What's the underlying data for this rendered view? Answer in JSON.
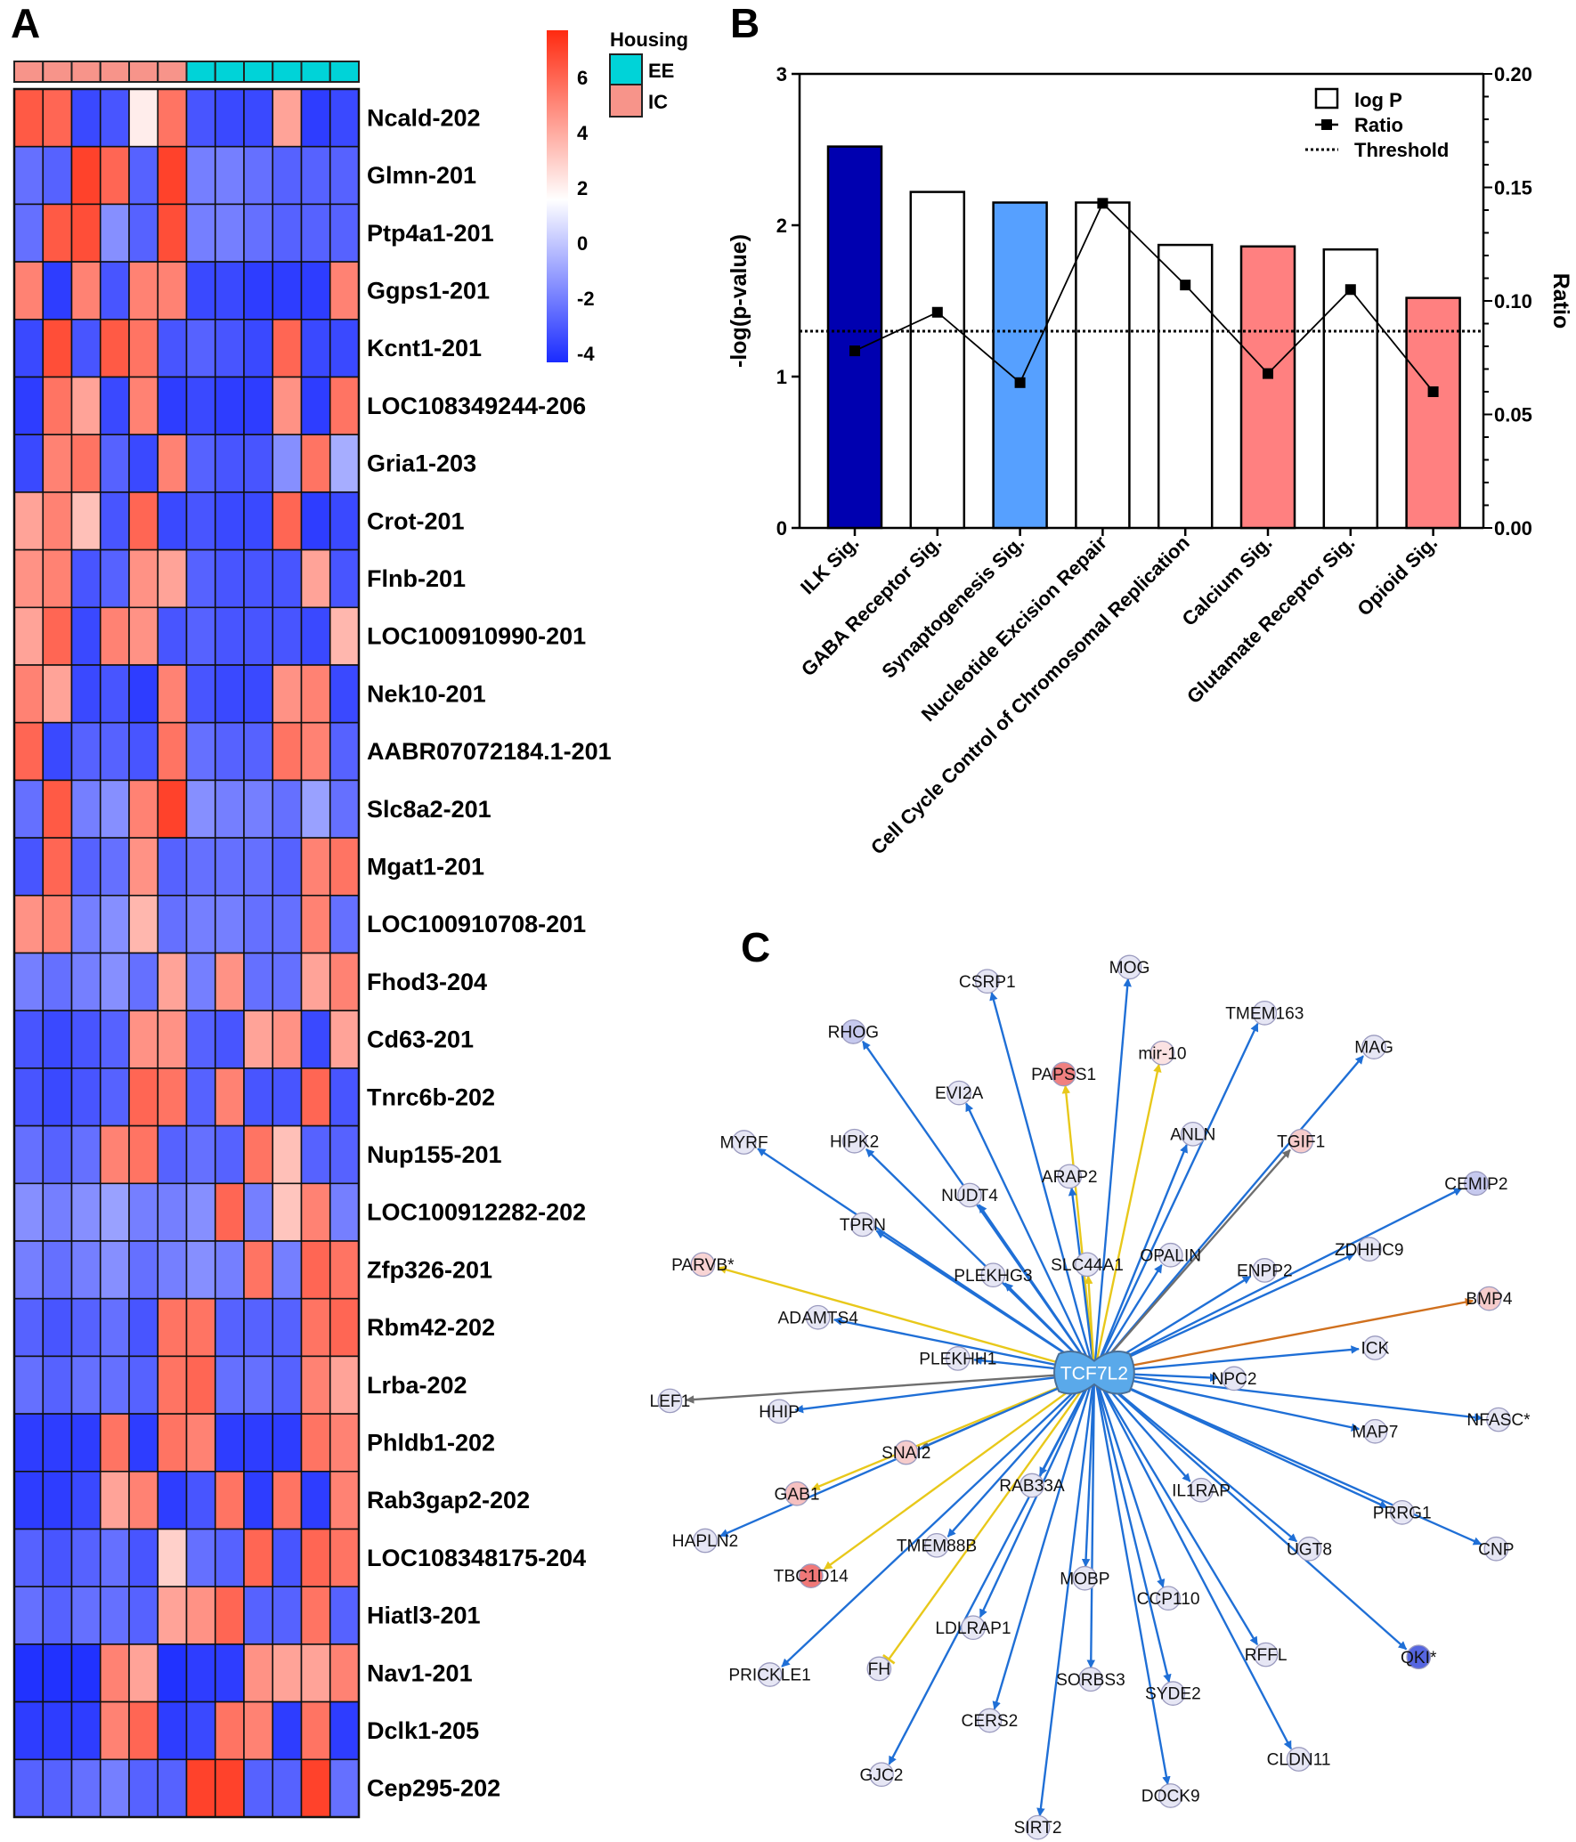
{
  "panels": {
    "a": "A",
    "b": "B",
    "c": "C"
  },
  "chart_data": [
    {
      "type": "heatmap",
      "panel": "A",
      "legend": {
        "title": "Housing",
        "groups": [
          {
            "label": "EE",
            "color": "#00d3d8"
          },
          {
            "label": "IC",
            "color": "#f7948a"
          }
        ]
      },
      "column_groups": [
        "IC",
        "IC",
        "IC",
        "IC",
        "IC",
        "IC",
        "EE",
        "EE",
        "EE",
        "EE",
        "EE",
        "EE"
      ],
      "colorbar": {
        "ticks": [
          "6",
          "4",
          "2",
          "0",
          "-2",
          "-4"
        ],
        "range": [
          -4.3,
          7.6
        ],
        "low": "#1a2bff",
        "mid": "#ffffff",
        "high": "#ff2a10"
      },
      "rows": [
        "Ncald-202",
        "Glmn-201",
        "Ptp4a1-201",
        "Ggps1-201",
        "Kcnt1-201",
        "LOC108349244-206",
        "Gria1-203",
        "Crot-201",
        "Flnb-201",
        "LOC100910990-201",
        "Nek10-201",
        "AABR07072184.1-201",
        "Slc8a2-201",
        "Mgat1-201",
        "LOC100910708-201",
        "Fhod3-204",
        "Cd63-201",
        "Tnrc6b-202",
        "Nup155-201",
        "LOC100912282-202",
        "Zfp326-201",
        "Rbm42-202",
        "Lrba-202",
        "Phldb1-202",
        "Rab3gap2-202",
        "LOC108348175-204",
        "Hiatl3-201",
        "Nav1-201",
        "Dclk1-205",
        "Cep295-202"
      ],
      "values": [
        [
          5.5,
          5,
          -3,
          -2.5,
          1.6,
          4.5,
          -2.5,
          -3,
          -3,
          3,
          -3.5,
          -3
        ],
        [
          -1.5,
          -2,
          6.5,
          5,
          -2,
          6.5,
          -1,
          -1,
          -1.5,
          -2,
          -2,
          -2
        ],
        [
          -1.5,
          5.5,
          6,
          -0.5,
          -2,
          6,
          -1,
          -1,
          -1.5,
          -2,
          -2,
          -2
        ],
        [
          4,
          -3.5,
          4,
          -2.5,
          4,
          4,
          -3,
          -3,
          -3.5,
          -3.5,
          -3.5,
          4
        ],
        [
          -3,
          6,
          -2.5,
          5.5,
          4.5,
          -2.5,
          -2,
          -2.5,
          -3,
          5,
          -3,
          -3
        ],
        [
          -3.5,
          4.5,
          3,
          -3,
          4,
          -3.5,
          -3,
          -3.5,
          -3.5,
          3.5,
          -3.5,
          4.5
        ],
        [
          -3,
          4,
          4.5,
          -2,
          -3,
          4,
          -2,
          -2.5,
          -2.5,
          -0.5,
          4.5,
          0.3
        ],
        [
          3,
          4,
          2.3,
          -2.5,
          5,
          -3,
          -2.5,
          -3,
          -3,
          5,
          -3.5,
          -3
        ],
        [
          3.5,
          4,
          -2.5,
          -2,
          3.5,
          3,
          -2,
          -2.5,
          -2.5,
          -2.5,
          3,
          -2.5
        ],
        [
          3,
          5,
          -3,
          4,
          3.5,
          -2.5,
          -2,
          -2.5,
          -2.5,
          -2.5,
          -3,
          2.5
        ],
        [
          4,
          3,
          -3,
          -2.5,
          -3.5,
          4,
          -2.5,
          -3,
          -3,
          3.5,
          4,
          -3
        ],
        [
          5,
          -3,
          -2,
          -2,
          -2.5,
          4.5,
          -1.5,
          -2,
          -2,
          4.5,
          4,
          -2
        ],
        [
          -1.5,
          5.5,
          -1,
          -0.5,
          4,
          6.5,
          -0.5,
          -1,
          -1,
          -1.5,
          0,
          -1.5
        ],
        [
          -2.5,
          5,
          -2,
          -1.5,
          3.5,
          -2,
          -1.5,
          -1.5,
          -1.5,
          -2,
          4,
          4.5
        ],
        [
          3.5,
          4,
          -1,
          -0.5,
          2.5,
          -1.5,
          -1,
          -1,
          -1.5,
          -1.5,
          4,
          -1.5
        ],
        [
          -1,
          -1.5,
          -1,
          -0.5,
          -1.5,
          3,
          -1,
          3.5,
          -1.5,
          -1.5,
          3,
          4
        ],
        [
          -2.5,
          -3,
          -2.5,
          -2,
          3.5,
          3.5,
          -2,
          -2.5,
          3,
          3.5,
          -3,
          3
        ],
        [
          -2.5,
          -3,
          -2.5,
          -2,
          5,
          4.5,
          -2,
          4,
          -2.5,
          -2.5,
          5,
          -2.5
        ],
        [
          -1.5,
          -2,
          -1.5,
          4,
          4.5,
          -2,
          -1.5,
          -2,
          4.5,
          2.3,
          -2,
          -2
        ],
        [
          -0.5,
          -1,
          -0.5,
          0,
          -1,
          -1,
          -0.5,
          5,
          -1,
          2.2,
          4,
          -1
        ],
        [
          -1,
          -1.5,
          -1,
          -0.5,
          -1.5,
          -1,
          -0.5,
          -1,
          4.5,
          -1,
          5,
          4.5
        ],
        [
          -2,
          -2.5,
          -2,
          -1.5,
          -2.5,
          4.5,
          4.5,
          -2,
          -2,
          -2,
          4.5,
          5
        ],
        [
          -1.5,
          -2,
          -1.5,
          -1.5,
          -2,
          4.5,
          5,
          -1.5,
          -1.5,
          -2,
          4,
          3
        ],
        [
          -3.5,
          -3.5,
          -3.5,
          4.5,
          -3.5,
          4.5,
          4,
          -3.5,
          -3.5,
          -3.5,
          4.5,
          4
        ],
        [
          -3.5,
          -3.5,
          -3,
          3,
          4,
          -3.5,
          -2.5,
          4.5,
          -3.5,
          4.5,
          -3.5,
          4
        ],
        [
          -2,
          -2.5,
          -2,
          -1.5,
          -2.5,
          2,
          -1.5,
          -2,
          5,
          -2.5,
          5,
          4.5
        ],
        [
          -1.5,
          -2,
          -1.5,
          -1.5,
          -2,
          3,
          3.5,
          5,
          -2,
          -2,
          4.5,
          -2
        ],
        [
          -4,
          -4,
          -4,
          4,
          3,
          -4,
          -3.5,
          -3.5,
          3.5,
          3,
          3,
          4
        ],
        [
          -3.5,
          -3.5,
          -3.5,
          4,
          5,
          -3.5,
          -3,
          4.5,
          4,
          -3.5,
          4.5,
          -3.5
        ],
        [
          -2,
          -2,
          -1.5,
          -1,
          -2,
          -2,
          6.5,
          6.5,
          -2,
          -2,
          6.5,
          -1.5
        ]
      ]
    },
    {
      "type": "bar",
      "panel": "B",
      "categories": [
        "ILK Sig.",
        "GABA Receptor Sig.",
        "Synaptogenesis Sig.",
        "Nucleotide Excision Repair",
        "Cell Cycle Control of Chromosomal Replication",
        "Calcium Sig.",
        "Glutamate Receptor Sig.",
        "Opioid Sig."
      ],
      "series": [
        {
          "name": "log P",
          "type": "bar",
          "axis": "left",
          "values": [
            2.52,
            2.22,
            2.15,
            2.15,
            1.87,
            1.86,
            1.84,
            1.52
          ],
          "colors": [
            "#0000b0",
            "#ffffff",
            "#56a0ff",
            "#ffffff",
            "#ffffff",
            "#ff8080",
            "#ffffff",
            "#ff8080"
          ]
        },
        {
          "name": "Ratio",
          "type": "line",
          "axis": "right",
          "values": [
            0.078,
            0.095,
            0.064,
            0.143,
            0.107,
            0.068,
            0.105,
            0.06
          ]
        },
        {
          "name": "Threshold",
          "type": "hline",
          "axis": "left",
          "value": 1.3
        }
      ],
      "ylabel": "-log(p-value)",
      "y2label": "Ratio",
      "ylim": [
        0,
        3
      ],
      "y2lim": [
        0,
        0.2
      ],
      "yticks": [
        "0",
        "1",
        "2",
        "3"
      ],
      "y2ticks": [
        "0.00",
        "0.05",
        "0.10",
        "0.15",
        "0.20"
      ],
      "legend_position": "top-right"
    },
    {
      "type": "network",
      "panel": "C",
      "center": {
        "label": "TCF7L2",
        "color": "#5aa9ea"
      },
      "edge_colors": {
        "blue": "#1f6fd6",
        "yellow": "#e8c81a",
        "gray": "#6e6e6e",
        "orange": "#d0701e"
      },
      "nodes": [
        {
          "label": "CSRP1",
          "fill": "#e6e6f4",
          "edge": "blue"
        },
        {
          "label": "MOG",
          "fill": "#e6e6f4",
          "edge": "blue"
        },
        {
          "label": "TMEM163",
          "fill": "#e6e6f4",
          "edge": "blue"
        },
        {
          "label": "RHOG",
          "fill": "#c6c9ee",
          "edge": "blue"
        },
        {
          "label": "PAPSS1",
          "fill": "#f08080",
          "edge": "yellow"
        },
        {
          "label": "mir-10",
          "fill": "#fbe2e2",
          "edge": "yellow"
        },
        {
          "label": "MAG",
          "fill": "#e6e6f4",
          "edge": "blue"
        },
        {
          "label": "EVI2A",
          "fill": "#e6e6f4",
          "edge": "blue"
        },
        {
          "label": "MYRF",
          "fill": "#e6e6f4",
          "edge": "blue"
        },
        {
          "label": "HIPK2",
          "fill": "#e6e6f4",
          "edge": "blue"
        },
        {
          "label": "ANLN",
          "fill": "#e6e6f4",
          "edge": "blue"
        },
        {
          "label": "TGIF1",
          "fill": "#f6cccc",
          "edge": "gray"
        },
        {
          "label": "ARAP2",
          "fill": "#e6e6f4",
          "edge": "blue"
        },
        {
          "label": "CEMIP2",
          "fill": "#c6c9ee",
          "edge": "blue"
        },
        {
          "label": "NUDT4",
          "fill": "#e6e6f4",
          "edge": "blue"
        },
        {
          "label": "TPRN",
          "fill": "#e6e6f4",
          "edge": "blue"
        },
        {
          "label": "ZDHHC9",
          "fill": "#e6e6f4",
          "edge": "blue"
        },
        {
          "label": "OPALIN",
          "fill": "#e6e6f4",
          "edge": "blue"
        },
        {
          "label": "SLC44A1",
          "fill": "#e6e6f4",
          "edge": "yellow"
        },
        {
          "label": "PLEKHG3",
          "fill": "#e6e6f4",
          "edge": "blue"
        },
        {
          "label": "PARVB*",
          "fill": "#f8d4d4",
          "edge": "yellow"
        },
        {
          "label": "ENPP2",
          "fill": "#e6e6f4",
          "edge": "blue"
        },
        {
          "label": "BMP4",
          "fill": "#f6cccc",
          "edge": "orange"
        },
        {
          "label": "ADAMTS4",
          "fill": "#e6e6f4",
          "edge": "blue"
        },
        {
          "label": "ICK",
          "fill": "#e6e6f4",
          "edge": "blue"
        },
        {
          "label": "PLEKHH1",
          "fill": "#e6e6f4",
          "edge": "blue"
        },
        {
          "label": "NPC2",
          "fill": "#e6e6f4",
          "edge": "blue"
        },
        {
          "label": "LEF1",
          "fill": "#e6e6f4",
          "edge": "gray"
        },
        {
          "label": "HHIP",
          "fill": "#e6e6f4",
          "edge": "blue"
        },
        {
          "label": "NFASC*",
          "fill": "#e6e6f4",
          "edge": "blue"
        },
        {
          "label": "MAP7",
          "fill": "#e6e6f4",
          "edge": "blue"
        },
        {
          "label": "SNAI2",
          "fill": "#f6cccc",
          "edge": "gray"
        },
        {
          "label": "IL1RAP",
          "fill": "#e6e6f4",
          "edge": "blue"
        },
        {
          "label": "RAB33A",
          "fill": "#e6e6f4",
          "edge": "blue"
        },
        {
          "label": "GAB1",
          "fill": "#f6c0c0",
          "edge": "yellow"
        },
        {
          "label": "PRRG1",
          "fill": "#e6e6f4",
          "edge": "blue"
        },
        {
          "label": "HAPLN2",
          "fill": "#e6e6f4",
          "edge": "blue"
        },
        {
          "label": "UGT8",
          "fill": "#e6e6f4",
          "edge": "blue"
        },
        {
          "label": "CNP",
          "fill": "#e6e6f4",
          "edge": "blue"
        },
        {
          "label": "TMEM88B",
          "fill": "#e6e6f4",
          "edge": "blue"
        },
        {
          "label": "TBC1D14",
          "fill": "#f07878",
          "edge": "yellow"
        },
        {
          "label": "MOBP",
          "fill": "#e6e6f4",
          "edge": "blue"
        },
        {
          "label": "CCP110",
          "fill": "#e6e6f4",
          "edge": "blue"
        },
        {
          "label": "LDLRAP1",
          "fill": "#e6e6f4",
          "edge": "blue"
        },
        {
          "label": "RFFL",
          "fill": "#e6e6f4",
          "edge": "blue"
        },
        {
          "label": "QKI*",
          "fill": "#5666e0",
          "edge": "blue"
        },
        {
          "label": "FH",
          "fill": "#e6e6f4",
          "edge": "yellow",
          "inhibit": true
        },
        {
          "label": "PRICKLE1",
          "fill": "#e6e6f4",
          "edge": "blue"
        },
        {
          "label": "SORBS3",
          "fill": "#e6e6f4",
          "edge": "blue"
        },
        {
          "label": "SYDE2",
          "fill": "#e6e6f4",
          "edge": "blue"
        },
        {
          "label": "CERS2",
          "fill": "#e6e6f4",
          "edge": "blue"
        },
        {
          "label": "CLDN11",
          "fill": "#e6e6f4",
          "edge": "blue"
        },
        {
          "label": "GJC2",
          "fill": "#e6e6f4",
          "edge": "blue"
        },
        {
          "label": "DOCK9",
          "fill": "#e6e6f4",
          "edge": "blue"
        },
        {
          "label": "SIRT2",
          "fill": "#e6e6f4",
          "edge": "blue"
        }
      ]
    }
  ]
}
